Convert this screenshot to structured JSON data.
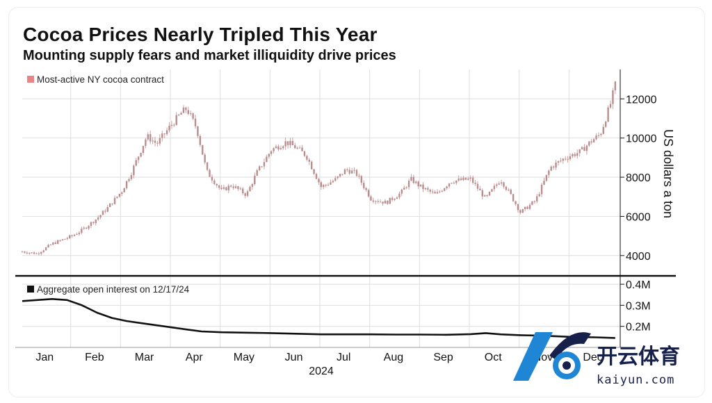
{
  "title": "Cocoa Prices Nearly Tripled This Year",
  "subtitle": "Mounting supply fears and market illiquidity drive prices",
  "watermark": {
    "brand_cn": "开云体育",
    "brand_en": "kaiyun.com",
    "accent": "#1f86d6",
    "accent2": "#16204a"
  },
  "colors": {
    "candle": "#c9a0a0",
    "candle_legend": "#e88484",
    "oi_line": "#111111",
    "grid": "#dedede"
  },
  "chart_data": [
    {
      "type": "line",
      "name": "price",
      "legend": "Most-active NY cocoa contract",
      "ylabel": "US dollars a ton",
      "ylim": [
        3000,
        13500
      ],
      "yticks": [
        4000,
        6000,
        8000,
        10000,
        12000
      ],
      "ytick_labels": [
        "4000",
        "6000",
        "8000",
        "10000",
        "12000"
      ],
      "x_range": [
        0,
        12
      ],
      "x": [
        0,
        0.3,
        0.6,
        1.0,
        1.2,
        1.5,
        1.7,
        2.0,
        2.2,
        2.5,
        2.7,
        3.0,
        3.2,
        3.3,
        3.5,
        3.7,
        4.0,
        4.2,
        4.5,
        4.7,
        5.0,
        5.3,
        5.5,
        5.7,
        6.0,
        6.3,
        6.5,
        6.7,
        7.0,
        7.3,
        7.6,
        7.8,
        8.0,
        8.3,
        8.6,
        9.0,
        9.3,
        9.6,
        9.8,
        10.0,
        10.3,
        10.6,
        10.9,
        11.2,
        11.4,
        11.6,
        11.8,
        11.9
      ],
      "values": [
        4200,
        4100,
        4600,
        5000,
        5300,
        5900,
        6400,
        7300,
        8300,
        10100,
        9700,
        10700,
        11300,
        11500,
        10500,
        8300,
        7300,
        7600,
        7100,
        8200,
        9400,
        9800,
        9500,
        9100,
        7500,
        7900,
        8400,
        8200,
        6900,
        6700,
        7200,
        7900,
        7500,
        7100,
        7800,
        7900,
        6900,
        7900,
        7100,
        6200,
        6800,
        8500,
        9000,
        9300,
        9800,
        10200,
        11700,
        12700
      ]
    },
    {
      "type": "line",
      "name": "open_interest",
      "legend": "Aggregate open interest on 12/17/24",
      "ylim": [
        100000,
        430000
      ],
      "yticks": [
        200000,
        300000,
        400000
      ],
      "ytick_labels": [
        "0.2M",
        "0.3M",
        "0.4M"
      ],
      "x_range": [
        0,
        12
      ],
      "x": [
        0,
        0.3,
        0.6,
        0.9,
        1.2,
        1.5,
        1.8,
        2.1,
        2.4,
        2.7,
        3.0,
        3.3,
        3.6,
        4.0,
        4.5,
        5.0,
        5.5,
        6.0,
        6.5,
        7.0,
        7.5,
        8.0,
        8.5,
        9.0,
        9.3,
        9.6,
        10.0,
        10.5,
        11.0,
        11.5,
        11.9
      ],
      "values": [
        320000,
        325000,
        330000,
        325000,
        300000,
        265000,
        240000,
        225000,
        215000,
        205000,
        195000,
        185000,
        176000,
        172000,
        170000,
        168000,
        165000,
        162000,
        162000,
        162000,
        161000,
        161000,
        160000,
        163000,
        168000,
        162000,
        158000,
        155000,
        150000,
        148000,
        145000
      ]
    }
  ],
  "x_axis": {
    "months": [
      "Jan",
      "Feb",
      "Mar",
      "Apr",
      "May",
      "Jun",
      "Jul",
      "Aug",
      "Sep",
      "Oct",
      "Nov",
      "Dec"
    ],
    "year": "2024"
  }
}
